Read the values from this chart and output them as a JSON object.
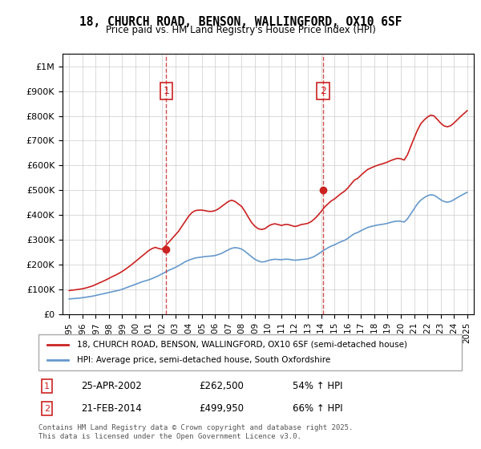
{
  "title": "18, CHURCH ROAD, BENSON, WALLINGFORD, OX10 6SF",
  "subtitle": "Price paid vs. HM Land Registry's House Price Index (HPI)",
  "hpi_label": "HPI: Average price, semi-detached house, South Oxfordshire",
  "property_label": "18, CHURCH ROAD, BENSON, WALLINGFORD, OX10 6SF (semi-detached house)",
  "sale1_date": "25-APR-2002",
  "sale1_price": "£262,500",
  "sale1_hpi": "54% ↑ HPI",
  "sale2_date": "21-FEB-2014",
  "sale2_price": "£499,950",
  "sale2_hpi": "66% ↑ HPI",
  "sale1_x": 2002.32,
  "sale2_x": 2014.13,
  "sale1_y": 262500,
  "sale2_y": 499950,
  "hpi_color": "#6699cc",
  "property_color": "#cc2222",
  "vline_color": "#cc2222",
  "background_color": "#ffffff",
  "grid_color": "#cccccc",
  "ylim": [
    0,
    1050000
  ],
  "xlim": [
    1994.5,
    2025.5
  ],
  "xlabel_years": [
    1995,
    1996,
    1997,
    1998,
    1999,
    2000,
    2001,
    2002,
    2003,
    2004,
    2005,
    2006,
    2007,
    2008,
    2009,
    2010,
    2011,
    2012,
    2013,
    2014,
    2015,
    2016,
    2017,
    2018,
    2019,
    2020,
    2021,
    2022,
    2023,
    2024,
    2025
  ],
  "footer": "Contains HM Land Registry data © Crown copyright and database right 2025.\nThis data is licensed under the Open Government Licence v3.0.",
  "hpi_data_x": [
    1995.0,
    1995.25,
    1995.5,
    1995.75,
    1996.0,
    1996.25,
    1996.5,
    1996.75,
    1997.0,
    1997.25,
    1997.5,
    1997.75,
    1998.0,
    1998.25,
    1998.5,
    1998.75,
    1999.0,
    1999.25,
    1999.5,
    1999.75,
    2000.0,
    2000.25,
    2000.5,
    2000.75,
    2001.0,
    2001.25,
    2001.5,
    2001.75,
    2002.0,
    2002.25,
    2002.5,
    2002.75,
    2003.0,
    2003.25,
    2003.5,
    2003.75,
    2004.0,
    2004.25,
    2004.5,
    2004.75,
    2005.0,
    2005.25,
    2005.5,
    2005.75,
    2006.0,
    2006.25,
    2006.5,
    2006.75,
    2007.0,
    2007.25,
    2007.5,
    2007.75,
    2008.0,
    2008.25,
    2008.5,
    2008.75,
    2009.0,
    2009.25,
    2009.5,
    2009.75,
    2010.0,
    2010.25,
    2010.5,
    2010.75,
    2011.0,
    2011.25,
    2011.5,
    2011.75,
    2012.0,
    2012.25,
    2012.5,
    2012.75,
    2013.0,
    2013.25,
    2013.5,
    2013.75,
    2014.0,
    2014.25,
    2014.5,
    2014.75,
    2015.0,
    2015.25,
    2015.5,
    2015.75,
    2016.0,
    2016.25,
    2016.5,
    2016.75,
    2017.0,
    2017.25,
    2017.5,
    2017.75,
    2018.0,
    2018.25,
    2018.5,
    2018.75,
    2019.0,
    2019.25,
    2019.5,
    2019.75,
    2020.0,
    2020.25,
    2020.5,
    2020.75,
    2021.0,
    2021.25,
    2021.5,
    2021.75,
    2022.0,
    2022.25,
    2022.5,
    2022.75,
    2023.0,
    2023.25,
    2023.5,
    2023.75,
    2024.0,
    2024.25,
    2024.5,
    2024.75,
    2025.0
  ],
  "hpi_data_y": [
    62000,
    63000,
    64000,
    65000,
    67000,
    69000,
    71000,
    73000,
    76000,
    79000,
    82000,
    85000,
    88000,
    91000,
    94000,
    97000,
    101000,
    106000,
    111000,
    116000,
    121000,
    126000,
    131000,
    135000,
    139000,
    144000,
    150000,
    156000,
    163000,
    170000,
    177000,
    183000,
    189000,
    196000,
    204000,
    212000,
    218000,
    223000,
    227000,
    229000,
    231000,
    233000,
    234000,
    235000,
    237000,
    241000,
    246000,
    253000,
    260000,
    266000,
    269000,
    267000,
    263000,
    254000,
    243000,
    232000,
    222000,
    215000,
    211000,
    212000,
    217000,
    220000,
    222000,
    221000,
    220000,
    222000,
    222000,
    220000,
    218000,
    219000,
    221000,
    222000,
    224000,
    228000,
    234000,
    242000,
    251000,
    260000,
    268000,
    275000,
    280000,
    287000,
    293000,
    298000,
    306000,
    316000,
    325000,
    330000,
    337000,
    344000,
    350000,
    354000,
    357000,
    360000,
    362000,
    364000,
    367000,
    371000,
    374000,
    376000,
    375000,
    372000,
    385000,
    405000,
    425000,
    445000,
    460000,
    470000,
    478000,
    482000,
    480000,
    472000,
    462000,
    455000,
    452000,
    455000,
    462000,
    470000,
    478000,
    485000,
    492000
  ],
  "prop_data_x": [
    1995.0,
    1995.25,
    1995.5,
    1995.75,
    1996.0,
    1996.25,
    1996.5,
    1996.75,
    1997.0,
    1997.25,
    1997.5,
    1997.75,
    1998.0,
    1998.25,
    1998.5,
    1998.75,
    1999.0,
    1999.25,
    1999.5,
    1999.75,
    2000.0,
    2000.25,
    2000.5,
    2000.75,
    2001.0,
    2001.25,
    2001.5,
    2001.75,
    2002.0,
    2002.25,
    2002.5,
    2002.75,
    2003.0,
    2003.25,
    2003.5,
    2003.75,
    2004.0,
    2004.25,
    2004.5,
    2004.75,
    2005.0,
    2005.25,
    2005.5,
    2005.75,
    2006.0,
    2006.25,
    2006.5,
    2006.75,
    2007.0,
    2007.25,
    2007.5,
    2007.75,
    2008.0,
    2008.25,
    2008.5,
    2008.75,
    2009.0,
    2009.25,
    2009.5,
    2009.75,
    2010.0,
    2010.25,
    2010.5,
    2010.75,
    2011.0,
    2011.25,
    2011.5,
    2011.75,
    2012.0,
    2012.25,
    2012.5,
    2012.75,
    2013.0,
    2013.25,
    2013.5,
    2013.75,
    2014.0,
    2014.25,
    2014.5,
    2014.75,
    2015.0,
    2015.25,
    2015.5,
    2015.75,
    2016.0,
    2016.25,
    2016.5,
    2016.75,
    2017.0,
    2017.25,
    2017.5,
    2017.75,
    2018.0,
    2018.25,
    2018.5,
    2018.75,
    2019.0,
    2019.25,
    2019.5,
    2019.75,
    2020.0,
    2020.25,
    2020.5,
    2020.75,
    2021.0,
    2021.25,
    2021.5,
    2021.75,
    2022.0,
    2022.25,
    2022.5,
    2022.75,
    2023.0,
    2023.25,
    2023.5,
    2023.75,
    2024.0,
    2024.25,
    2024.5,
    2024.75,
    2025.0
  ],
  "prop_data_y": [
    96000,
    97500,
    99000,
    101000,
    103000,
    106000,
    110000,
    114000,
    120000,
    126000,
    132000,
    138000,
    145000,
    152000,
    158000,
    165000,
    173000,
    182000,
    192000,
    202000,
    213000,
    224000,
    235000,
    246000,
    257000,
    265000,
    270000,
    265000,
    262500,
    275000,
    290000,
    305000,
    320000,
    335000,
    355000,
    375000,
    395000,
    410000,
    418000,
    420000,
    420000,
    418000,
    415000,
    415000,
    418000,
    425000,
    435000,
    445000,
    455000,
    460000,
    455000,
    445000,
    435000,
    415000,
    392000,
    370000,
    355000,
    345000,
    342000,
    345000,
    355000,
    362000,
    365000,
    362000,
    358000,
    362000,
    362000,
    358000,
    354000,
    357000,
    362000,
    364000,
    367000,
    374000,
    385000,
    399000,
    415000,
    432000,
    445000,
    457000,
    465000,
    476000,
    487000,
    496000,
    509000,
    525000,
    541000,
    548000,
    561000,
    573000,
    584000,
    590000,
    596000,
    601000,
    605000,
    609000,
    614000,
    620000,
    625000,
    629000,
    627000,
    622000,
    643000,
    677000,
    710000,
    742000,
    768000,
    783000,
    795000,
    803000,
    800000,
    786000,
    771000,
    760000,
    756000,
    760000,
    771000,
    784000,
    797000,
    809000,
    821000
  ]
}
